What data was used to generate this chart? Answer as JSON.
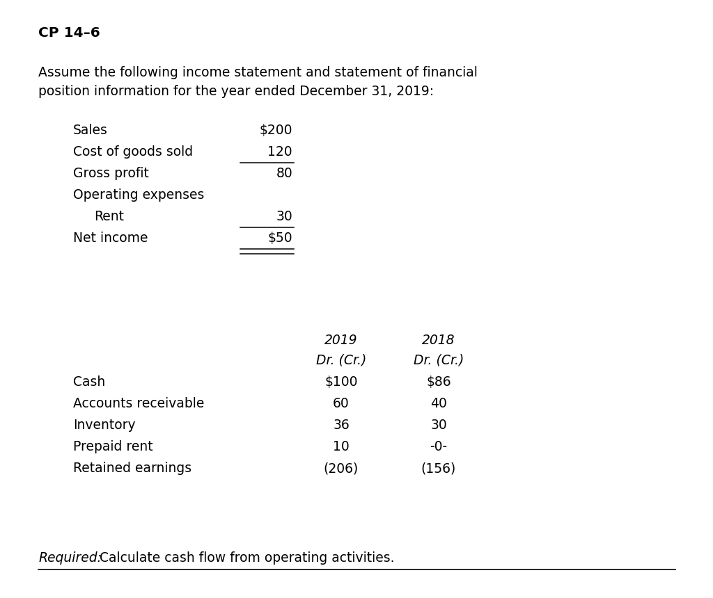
{
  "title": "CP 14–6",
  "intro_line1": "Assume the following income statement and statement of financial",
  "intro_line2": "position information for the year ended December 31, 2019:",
  "income_statement": [
    {
      "label": "Sales",
      "indent": 0,
      "value": "$200",
      "underline": false,
      "double_underline": false
    },
    {
      "label": "Cost of goods sold",
      "indent": 0,
      "value": "120",
      "underline": true,
      "double_underline": false
    },
    {
      "label": "Gross profit",
      "indent": 0,
      "value": "80",
      "underline": false,
      "double_underline": false
    },
    {
      "label": "Operating expenses",
      "indent": 0,
      "value": "",
      "underline": false,
      "double_underline": false
    },
    {
      "label": "Rent",
      "indent": 1,
      "value": "30",
      "underline": true,
      "double_underline": false
    },
    {
      "label": "Net income",
      "indent": 0,
      "value": "$50",
      "underline": false,
      "double_underline": true
    }
  ],
  "bal_headers": [
    "2019",
    "2018"
  ],
  "bal_subheaders": [
    "Dr. (Cr.)",
    "Dr. (Cr.)"
  ],
  "balance_sheet": [
    {
      "label": "Cash",
      "v2019": "$100",
      "v2018": "$86"
    },
    {
      "label": "Accounts receivable",
      "v2019": "60",
      "v2018": "40"
    },
    {
      "label": "Inventory",
      "v2019": "36",
      "v2018": "30"
    },
    {
      "label": "Prepaid rent",
      "v2019": "10",
      "v2018": "-0-"
    },
    {
      "label": "Retained earnings",
      "v2019": "(206)",
      "v2018": "(156)"
    }
  ],
  "required_italic": "Required:",
  "required_normal": " Calculate cash flow from operating activities.",
  "bg_color": "#ffffff",
  "text_color": "#000000",
  "font_size": 13.5,
  "title_font_size": 14.5
}
